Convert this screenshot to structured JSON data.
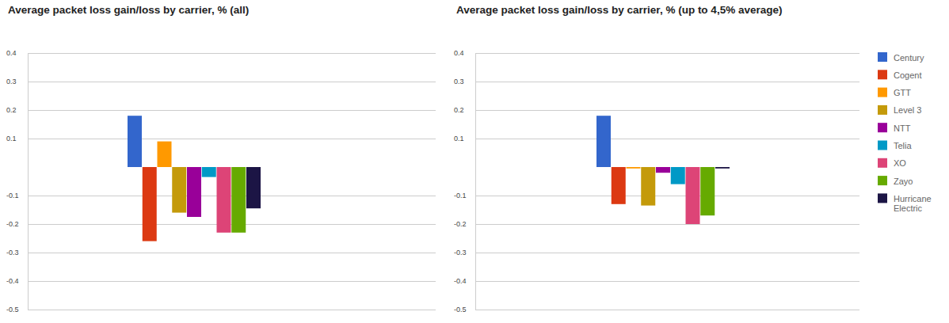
{
  "chart_data": [
    {
      "type": "bar",
      "title": "Average packet loss gain/loss by carrier, % (all)",
      "categories": [
        "Century",
        "Cogent",
        "GTT",
        "Level 3",
        "NTT",
        "Telia",
        "XO",
        "Zayo",
        "Hurricane Electric"
      ],
      "values": [
        0.18,
        -0.26,
        0.09,
        -0.16,
        -0.175,
        -0.035,
        -0.23,
        -0.23,
        -0.145
      ],
      "colors": [
        "#3366cc",
        "#dc3912",
        "#ff9900",
        "#c49a0a",
        "#990099",
        "#0099c6",
        "#dd4477",
        "#66aa00",
        "#1c1545"
      ],
      "ylim": [
        -0.5,
        0.4
      ],
      "yticks": [
        0.4,
        0.3,
        0.2,
        0.1,
        -0.1,
        -0.2,
        -0.3,
        -0.4,
        -0.5
      ],
      "grid": true,
      "tick_labels": "y"
    },
    {
      "type": "bar",
      "title": "Average packet loss gain/loss by carrier, % (up to 4,5% average)",
      "categories": [
        "Century",
        "Cogent",
        "GTT",
        "Level 3",
        "NTT",
        "Telia",
        "XO",
        "Zayo",
        "Hurricane Electric"
      ],
      "values": [
        0.18,
        -0.13,
        -0.005,
        -0.135,
        -0.02,
        -0.06,
        -0.2,
        -0.17,
        -0.005
      ],
      "colors": [
        "#3366cc",
        "#dc3912",
        "#ff9900",
        "#c49a0a",
        "#990099",
        "#0099c6",
        "#dd4477",
        "#66aa00",
        "#1c1545"
      ],
      "ylim": [
        -0.5,
        0.4
      ],
      "yticks": [
        0.4,
        0.3,
        0.2,
        0.1,
        -0.1,
        -0.2,
        -0.3,
        -0.4,
        -0.5
      ],
      "grid": true,
      "tick_labels": "y",
      "legend": "right"
    }
  ]
}
